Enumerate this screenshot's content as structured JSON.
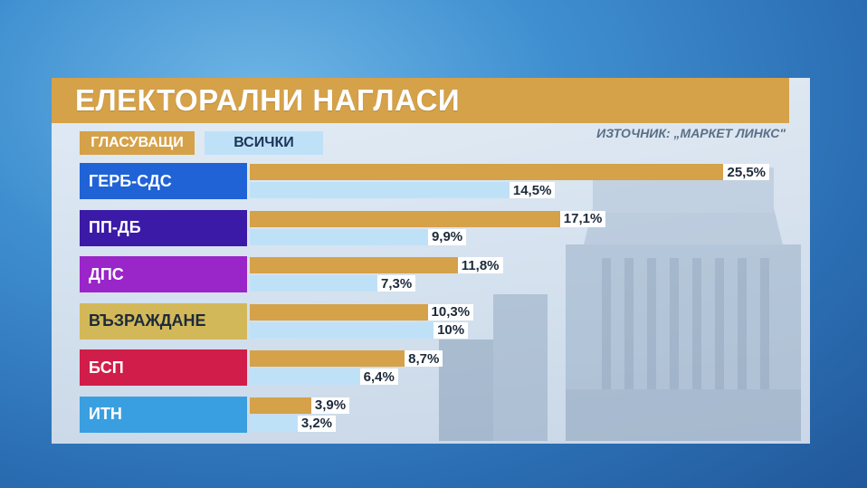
{
  "title": "ЕЛЕКТОРАЛНИ НАГЛАСИ",
  "source": "ИЗТОЧНИК: „МАРКЕТ ЛИНКС\"",
  "chart_data": {
    "type": "bar",
    "orientation": "horizontal",
    "title": "ЕЛЕКТОРАЛНИ НАГЛАСИ",
    "categories": [
      "ГЕРБ-СДС",
      "ПП-ДБ",
      "ДПС",
      "ВЪЗРАЖДАНЕ",
      "БСП",
      "ИТН"
    ],
    "category_colors": [
      "#1f63d6",
      "#3b1aa8",
      "#9a25c9",
      "#d3b85a",
      "#d11d49",
      "#3a9fe0"
    ],
    "label_text_colors": [
      "#ffffff",
      "#ffffff",
      "#ffffff",
      "#1c2a3a",
      "#ffffff",
      "#ffffff"
    ],
    "series": [
      {
        "name": "ГЛАСУВАЩИ",
        "color": "#d5a149",
        "values": [
          25.5,
          17.1,
          11.8,
          10.3,
          8.7,
          3.9
        ],
        "labels": [
          "25,5%",
          "17,1%",
          "11,8%",
          "10,3%",
          "8,7%",
          "3,9%"
        ]
      },
      {
        "name": "ВСИЧКИ",
        "color": "#bfe1f8",
        "values": [
          14.5,
          9.9,
          7.3,
          10,
          6.4,
          3.2
        ],
        "labels": [
          "14,5%",
          "9,9%",
          "7,3%",
          "10%",
          "6,4%",
          "3,2%"
        ]
      }
    ],
    "xlim": [
      0,
      26.5
    ],
    "legend": "top-left"
  }
}
